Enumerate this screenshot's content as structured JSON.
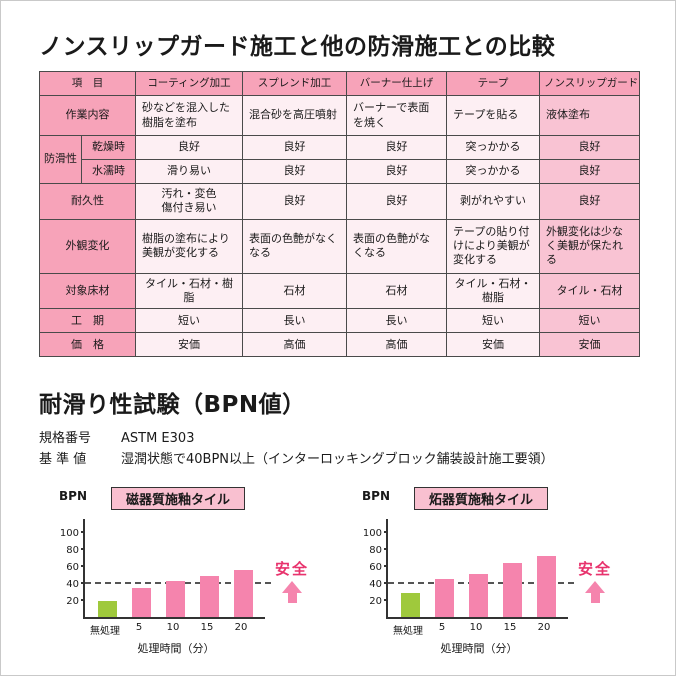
{
  "page": {
    "title_comparison": "ノンスリップガード施工と他の防滑施工との比較",
    "title_test": "耐滑り性試験（BPN値）"
  },
  "table": {
    "header": [
      "項　目",
      "コーティング加工",
      "スプレンド加工",
      "バーナー仕上げ",
      "テープ",
      "ノンスリップガード"
    ],
    "antislip_label": "防滑性",
    "rows": [
      {
        "label": "作業内容",
        "cells": [
          "砂などを混入した樹脂を塗布",
          "混合砂を高圧噴射",
          "バーナーで表面を焼く",
          "テープを貼る",
          "液体塗布"
        ]
      },
      {
        "label": "乾燥時",
        "cells": [
          "良好",
          "良好",
          "良好",
          "突っかかる",
          "良好"
        ]
      },
      {
        "label": "水濡時",
        "cells": [
          "滑り易い",
          "良好",
          "良好",
          "突っかかる",
          "良好"
        ]
      },
      {
        "label": "耐久性",
        "cells": [
          "汚れ・変色\n傷付き易い",
          "良好",
          "良好",
          "剥がれやすい",
          "良好"
        ]
      },
      {
        "label": "外観変化",
        "cells": [
          "樹脂の塗布により美観が変化する",
          "表面の色艶がなくなる",
          "表面の色艶がなくなる",
          "テープの貼り付けにより美観が変化する",
          "外観変化は少なく美観が保たれる"
        ]
      },
      {
        "label": "対象床材",
        "cells": [
          "タイル・石材・樹脂",
          "石材",
          "石材",
          "タイル・石材・樹脂",
          "タイル・石材"
        ]
      },
      {
        "label": "工　期",
        "cells": [
          "短い",
          "長い",
          "長い",
          "短い",
          "短い"
        ]
      },
      {
        "label": "価　格",
        "cells": [
          "安価",
          "高価",
          "高価",
          "安価",
          "安価"
        ]
      }
    ]
  },
  "spec": {
    "rows": [
      {
        "label": "規格番号",
        "value": "ASTM E303"
      },
      {
        "label": "基 準 値",
        "value": "湿潤状態で40BPN以上（インターロッキングブロック舗装設計施工要領）"
      }
    ]
  },
  "colors": {
    "header_pink": "#f7a3b9",
    "cell_pink": "#fdeff3",
    "highlight_pink": "#f9c3d3",
    "bar_pink": "#f584ad",
    "bar_green": "#9fc93c",
    "safety_red": "#e8336d"
  },
  "chart_data": [
    {
      "type": "bar",
      "title": "磁器質施釉タイル",
      "ylabel": "BPN",
      "xlabel": "処理時間（分）",
      "categories": [
        "無処理",
        "5",
        "10",
        "15",
        "20"
      ],
      "values": [
        18,
        34,
        42,
        48,
        55
      ],
      "bar_colors": [
        "#9fc93c",
        "#f584ad",
        "#f584ad",
        "#f584ad",
        "#f584ad"
      ],
      "ylim": [
        0,
        100
      ],
      "yticks": [
        20,
        40,
        60,
        80,
        100
      ],
      "grid": false,
      "threshold": 40,
      "annotation": "安全"
    },
    {
      "type": "bar",
      "title": "炻器質施釉タイル",
      "ylabel": "BPN",
      "xlabel": "処理時間（分）",
      "categories": [
        "無処理",
        "5",
        "10",
        "15",
        "20"
      ],
      "values": [
        28,
        45,
        50,
        63,
        72
      ],
      "bar_colors": [
        "#9fc93c",
        "#f584ad",
        "#f584ad",
        "#f584ad",
        "#f584ad"
      ],
      "ylim": [
        0,
        100
      ],
      "yticks": [
        20,
        40,
        60,
        80,
        100
      ],
      "grid": false,
      "threshold": 40,
      "annotation": "安全"
    }
  ]
}
